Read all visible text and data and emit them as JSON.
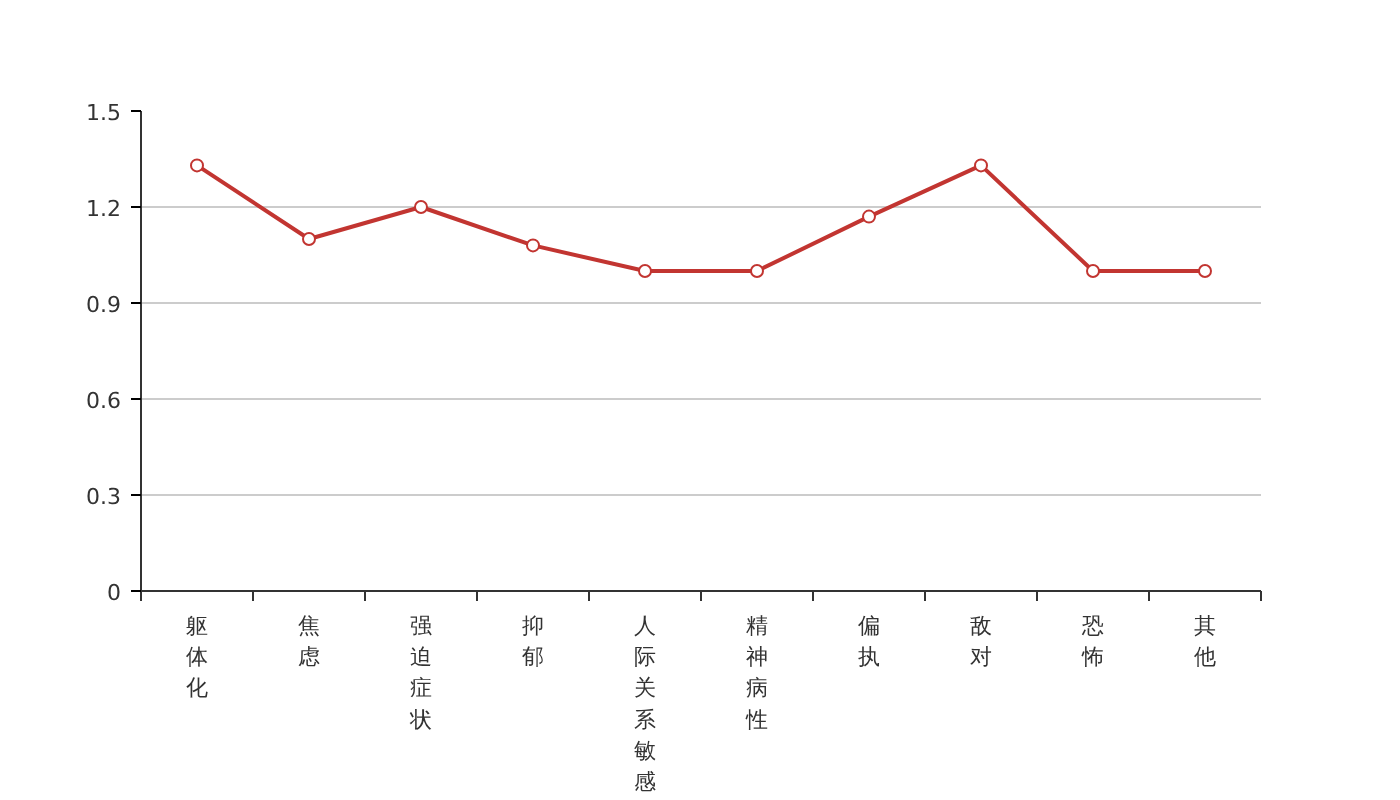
{
  "chart_data": {
    "type": "line",
    "categories": [
      "躯体化",
      "焦虑",
      "强迫症状",
      "抑郁",
      "人际关系敏感",
      "精神病性",
      "偏执",
      "敌对",
      "恐怖",
      "其他"
    ],
    "series": [
      {
        "color": "#c23531",
        "values": [
          1.33,
          1.1,
          1.2,
          1.08,
          1.0,
          1.0,
          1.17,
          1.33,
          1.0,
          1.0
        ]
      }
    ],
    "ylim": [
      0,
      1.5
    ],
    "yticks": [
      0,
      0.3,
      0.6,
      0.9,
      1.2,
      1.5
    ],
    "grid": "y",
    "marker": "circle",
    "line_style": "solid"
  }
}
